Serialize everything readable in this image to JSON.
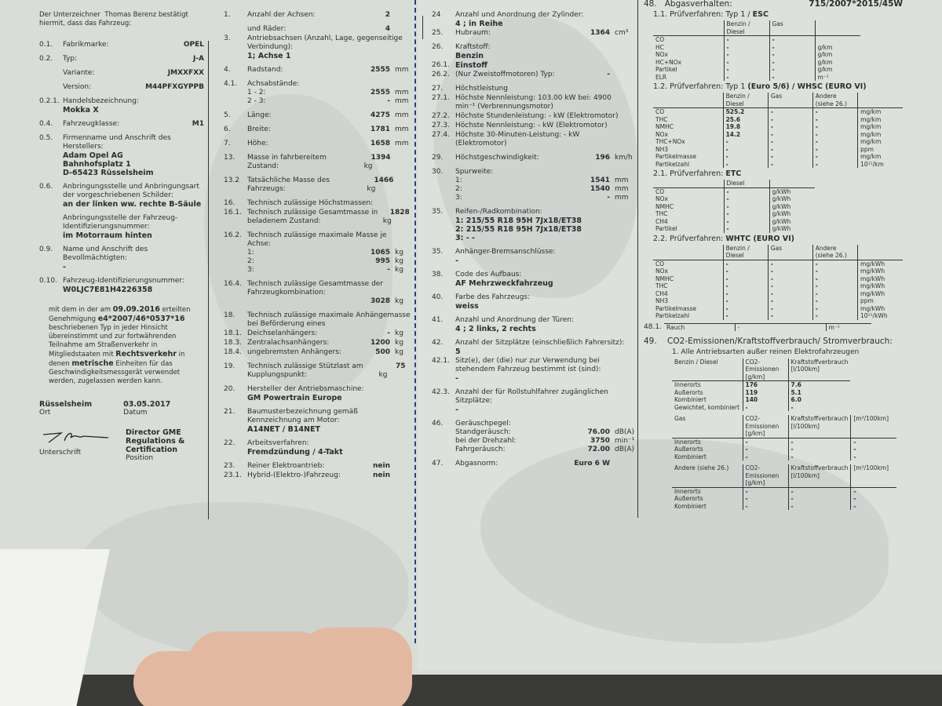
{
  "colors": {
    "paper": "#d9ddd8",
    "map": "#c9cfca",
    "fold_line": "#2a3f7a",
    "text": "#2b2d2c"
  },
  "left": {
    "intro_a": "Der Unterzeichner",
    "signer": "Thomas Berenz",
    "intro_b": "bestätigt",
    "intro_c": "hiermit, dass das Fahrzeug:",
    "items": [
      {
        "num": "0.1.",
        "label": "Fabrikmarke:",
        "value": "OPEL"
      },
      {
        "num": "0.2.",
        "label": "Typ:",
        "value": "J-A"
      },
      {
        "num": "",
        "label": "Variante:",
        "value": "JMXXFXX"
      },
      {
        "num": "",
        "label": "Version:",
        "value": "M44PFXGYPPB"
      },
      {
        "num": "0.2.1.",
        "label": "Handelsbezeichnung:",
        "lines": [
          "Mokka X"
        ]
      },
      {
        "num": "0.4.",
        "label": "Fahrzeugklasse:",
        "value": "M1"
      },
      {
        "num": "0.5.",
        "label": "Firmenname und Anschrift des Herstellers:",
        "lines": [
          "Adam Opel AG",
          "Bahnhofsplatz 1",
          "D-65423 Rüsselsheim"
        ]
      },
      {
        "num": "0.6.",
        "label": "Anbringungsstelle und Anbringungsart der vorgeschriebenen Schilder:",
        "lines": [
          "an der linken ww. rechte B-Säule"
        ]
      },
      {
        "num": "",
        "label": "Anbringungsstelle der Fahrzeug-Identifizierungsnummer:",
        "lines": [
          "im Motorraum hinten"
        ]
      },
      {
        "num": "0.9.",
        "label": "Name und Anschrift des Bevollmächtigten:",
        "lines": [
          "-"
        ]
      },
      {
        "num": "0.10.",
        "label": "Fahrzeug-Identifizierungsnummer:",
        "lines": [
          "W0LJC7E81H4226358"
        ]
      }
    ],
    "para": [
      {
        "t": "mit dem in der am "
      },
      {
        "b": "09.09.2016"
      },
      {
        "t": " erteilten Genehmigung "
      },
      {
        "b": "e4*2007/46*0537*16"
      },
      {
        "t": " beschriebenen Typ in jeder Hinsicht übereinstimmt und zur fortwährenden Teilnahme am Straßenverkehr in Mitgliedstaaten mit "
      },
      {
        "b": "Rechtsverkehr"
      },
      {
        "t": " in denen "
      },
      {
        "b": "metrische"
      },
      {
        "t": " Einheiten für das Geschwindigkeitsmessgerät verwendet werden, zugelassen werden kann."
      }
    ],
    "place": "Rüsselsheim",
    "place_label": "Ort",
    "date": "03.05.2017",
    "date_label": "Datum",
    "position": "Director GME Regulations & Certification",
    "position_label": "Position",
    "signature_label": "Unterschrift",
    "signature": "T. Berenz"
  },
  "middle": [
    {
      "num": "1.",
      "label": "Anzahl der Achsen:",
      "value": "2"
    },
    {
      "num": "",
      "label": "und Räder:",
      "value": "4",
      "tight": true
    },
    {
      "num": "3.",
      "label": "Antriebsachsen (Anzahl, Lage, gegenseitige Verbindung):",
      "lines": [
        "1; Achse 1"
      ]
    },
    {
      "num": "4.",
      "label": "Radstand:",
      "value": "2555",
      "unit": "mm"
    },
    {
      "num": "4.1.",
      "label": "Achsabstände:",
      "sub": [
        {
          "label": "1 - 2:",
          "value": "2555",
          "unit": "mm"
        },
        {
          "label": "2 - 3:",
          "value": "-",
          "unit": "mm"
        }
      ]
    },
    {
      "num": "5.",
      "label": "Länge:",
      "value": "4275",
      "unit": "mm"
    },
    {
      "num": "6.",
      "label": "Breite:",
      "value": "1781",
      "unit": "mm"
    },
    {
      "num": "7.",
      "label": "Höhe:",
      "value": "1658",
      "unit": "mm"
    },
    {
      "num": "13.",
      "label": "Masse in fahrbereitem Zustand:",
      "value": "1394",
      "unit": "kg"
    },
    {
      "num": "13.2",
      "label": "Tatsächliche Masse des Fahrzeugs:",
      "value": "1466",
      "unit": "kg"
    },
    {
      "num": "16.",
      "label": "Technisch zulässige Höchstmassen:",
      "tight": true
    },
    {
      "num": "16.1.",
      "label": "Technisch zulässige Gesamtmasse in beladenem Zustand:",
      "value": "1828",
      "unit": "kg"
    },
    {
      "num": "16.2.",
      "label": "Technisch zulässige maximale Masse je Achse:",
      "sub": [
        {
          "label": "1:",
          "value": "1065",
          "unit": "kg"
        },
        {
          "label": "2:",
          "value": "995",
          "unit": "kg"
        },
        {
          "label": "3:",
          "value": "-",
          "unit": "kg"
        }
      ]
    },
    {
      "num": "16.4.",
      "label": "Technisch zulässige Gesamtmasse der Fahrzeugkombination:",
      "sub": [
        {
          "label": "",
          "value": "3028",
          "unit": "kg"
        }
      ]
    },
    {
      "num": "18.",
      "label": "Technisch zulässige maximale Anhängemasse bei Beförderung eines",
      "tight": true
    },
    {
      "num": "18.1.",
      "label": "Deichselanhängers:",
      "value": "-",
      "unit": "kg",
      "tight": true
    },
    {
      "num": "18.3.",
      "label": "Zentralachsanhängers:",
      "value": "1200",
      "unit": "kg",
      "tight": true
    },
    {
      "num": "18.4.",
      "label": "ungebremsten Anhängers:",
      "value": "500",
      "unit": "kg"
    },
    {
      "num": "19.",
      "label": "Technisch zulässige Stützlast am Kupplungspunkt:",
      "value": "75",
      "unit": "kg"
    },
    {
      "num": "20.",
      "label": "Hersteller der Antriebsmaschine:",
      "lines": [
        "GM Powertrain Europe"
      ]
    },
    {
      "num": "21.",
      "label": "Baumusterbezeichnung gemäß Kennzeichnung am Motor:",
      "lines": [
        "A14NET / B14NET"
      ]
    },
    {
      "num": "22.",
      "label": "Arbeitsverfahren:",
      "lines": [
        "Fremdzündung / 4-Takt"
      ]
    },
    {
      "num": "23.",
      "label": "Reiner Elektroantrieb:",
      "value": "nein",
      "tight": true
    },
    {
      "num": "23.1.",
      "label": "Hybrid-(Elektro-)Fahrzeug:",
      "value": "nein"
    }
  ],
  "right": [
    {
      "num": "24",
      "label": "Anzahl und Anordnung der Zylinder:",
      "lines": [
        "4 ; in Reihe"
      ],
      "tight": true
    },
    {
      "num": "25.",
      "label": "Hubraum:",
      "value": "1364",
      "unit": "cm³"
    },
    {
      "num": "26.",
      "label": "Kraftstoff:",
      "lines": [
        "Benzin"
      ],
      "tight": true
    },
    {
      "num": "26.1.",
      "label": "",
      "lines": [
        "Einstoff"
      ],
      "tight": true
    },
    {
      "num": "26.2.",
      "label": "(Nur Zweistoffmotoren) Typ:",
      "value": "-"
    },
    {
      "num": "27.",
      "label": "Höchstleistung",
      "tight": true
    },
    {
      "num": "27.1.",
      "label": "Höchste Nennleistung: 103.00 kW bei: 4900 min⁻¹ (Verbrennungsmotor)",
      "tight": true
    },
    {
      "num": "27.2.",
      "label": "Höchste Stundenleistung: - kW (Elektromotor)",
      "tight": true
    },
    {
      "num": "27.3.",
      "label": "Höchste Nennleistung: - kW (Elektromotor)",
      "tight": true
    },
    {
      "num": "27.4.",
      "label": "Höchste 30-Minuten-Leistung: - kW (Elektromotor)"
    },
    {
      "num": "29.",
      "label": "Höchstgeschwindigkeit:",
      "value": "196",
      "unit": "km/h"
    },
    {
      "num": "30.",
      "label": "Spurweite:",
      "sub": [
        {
          "label": "1:",
          "value": "1541",
          "unit": "mm"
        },
        {
          "label": "2:",
          "value": "1540",
          "unit": "mm"
        },
        {
          "label": "3:",
          "value": "-",
          "unit": "mm"
        }
      ]
    },
    {
      "num": "35.",
      "label": "Reifen-/Radkombination:",
      "lines": [
        "1: 215/55 R18 95H 7Jx18/ET38",
        "2: 215/55 R18 95H 7Jx18/ET38",
        "3: - -"
      ]
    },
    {
      "num": "35.",
      "label": "Anhänger-Bremsanschlüsse:",
      "lines": [
        "-"
      ]
    },
    {
      "num": "38.",
      "label": "Code des Aufbaus:",
      "lines": [
        "AF  Mehrzweckfahrzeug"
      ]
    },
    {
      "num": "40.",
      "label": "Farbe des Fahrzeugs:",
      "lines": [
        "weiss"
      ]
    },
    {
      "num": "41.",
      "label": "Anzahl und Anordnung der Türen:",
      "lines": [
        "4 ; 2 links, 2 rechts"
      ]
    },
    {
      "num": "42.",
      "label": "Anzahl der Sitzplätze (einschließlich Fahrersitz):",
      "lines": [
        "5"
      ],
      "tight": true
    },
    {
      "num": "42.1.",
      "label": "Sitz(e), der (die) nur zur Verwendung bei stehendem Fahrzeug bestimmt ist (sind):",
      "lines": [
        "-"
      ]
    },
    {
      "num": "42.3.",
      "label": "Anzahl der für Rollstuhlfahrer zugänglichen Sitzplätze:",
      "lines": [
        "-"
      ]
    },
    {
      "num": "46.",
      "label": "Geräuschpegel:",
      "sub": [
        {
          "label": "Standgeräusch:",
          "value": "76.00",
          "unit": "dB(A)"
        },
        {
          "label": "bei der Drehzahl:",
          "value": "3750",
          "unit": "min⁻¹"
        },
        {
          "label": "Fahrgeräusch:",
          "value": "72.00",
          "unit": "dB(A)"
        }
      ]
    },
    {
      "num": "47.",
      "label": "Abgasnorm:",
      "value": "Euro 6 W"
    }
  ],
  "emissions": {
    "num": "48.",
    "title": "Abgasverhalten:",
    "regulation": "715/2007*2015/45W",
    "tables": [
      {
        "title": "1.1. Prüfverfahren: Typ 1 / ",
        "title_bold": "ESC",
        "head": [
          "",
          "Benzin / Diesel",
          "Gas",
          ""
        ],
        "rows": [
          [
            "CO",
            "-",
            "-",
            ""
          ],
          [
            "HC",
            "-",
            "-",
            "g/km"
          ],
          [
            "NOx",
            "-",
            "-",
            "g/km"
          ],
          [
            "HC+NOx",
            "-",
            "-",
            "g/km"
          ],
          [
            "Partikel",
            "-",
            "-",
            "g/km"
          ],
          [
            "ELR",
            "-",
            "-",
            "m⁻¹"
          ]
        ]
      },
      {
        "title": "1.2. Prüfverfahren: Typ 1 ",
        "title_bold": "(Euro 5/6) / WHSC (EURO VI)",
        "head": [
          "",
          "Benzin / Diesel",
          "Gas",
          "Andere (siehe 26.)",
          ""
        ],
        "rows": [
          [
            "CO",
            "525.2",
            "-",
            "-",
            "mg/km"
          ],
          [
            "THC",
            "25.6",
            "-",
            "-",
            "mg/km"
          ],
          [
            "NMHC",
            "19.8",
            "-",
            "-",
            "mg/km"
          ],
          [
            "NOx",
            "14.2",
            "-",
            "-",
            "mg/km"
          ],
          [
            "THC+NOx",
            "-",
            "-",
            "-",
            "mg/km"
          ],
          [
            "NH3",
            "-",
            "-",
            "-",
            "ppm"
          ],
          [
            "Partikelmasse",
            "-",
            "-",
            "-",
            "mg/km"
          ],
          [
            "Partikelzahl",
            "-",
            "-",
            "-",
            "10¹¹/km"
          ]
        ]
      },
      {
        "title": "2.1. Prüfverfahren: ",
        "title_bold": "ETC",
        "head": [
          "",
          "Diesel",
          ""
        ],
        "rows": [
          [
            "CO",
            "-",
            "g/kWh"
          ],
          [
            "NOx",
            "-",
            "g/kWh"
          ],
          [
            "NMHC",
            "-",
            "g/kWh"
          ],
          [
            "THC",
            "-",
            "g/kWh"
          ],
          [
            "CH4",
            "-",
            "g/kWh"
          ],
          [
            "Partikel",
            "-",
            "g/kWh"
          ]
        ]
      },
      {
        "title": "2.2. Prüfverfahren: ",
        "title_bold": "WHTC (EURO VI)",
        "head": [
          "",
          "Benzin / Diesel",
          "Gas",
          "Andere (siehe 26.)",
          ""
        ],
        "rows": [
          [
            "CO",
            "-",
            "-",
            "-",
            "mg/kWh"
          ],
          [
            "NOx",
            "-",
            "-",
            "-",
            "mg/kWh"
          ],
          [
            "NMHC",
            "-",
            "-",
            "-",
            "mg/kWh"
          ],
          [
            "THC",
            "-",
            "-",
            "-",
            "mg/kWh"
          ],
          [
            "CH4",
            "-",
            "-",
            "-",
            "mg/kWh"
          ],
          [
            "NH3",
            "-",
            "-",
            "-",
            "ppm"
          ],
          [
            "Partikelmasse",
            "-",
            "-",
            "-",
            "mg/kWh"
          ],
          [
            "Partikelzahl",
            "-",
            "-",
            "-",
            "10¹¹/kWh"
          ]
        ]
      }
    ],
    "smoke": {
      "num": "48.1.",
      "rows": [
        [
          "",
          "",
          " "
        ],
        [
          "Rauch",
          "-",
          "m⁻¹"
        ]
      ]
    }
  },
  "co2": {
    "num": "49.",
    "title": "CO2-Emissionen/Kraftstoffverbrauch/ Stromverbrauch:",
    "subtitle": "1. Alle Antriebsarten außer reinen Elektrofahrzeugen",
    "tables": [
      {
        "head": [
          "Benzin / Diesel",
          "CO2-Emissionen [g/km]",
          "Kraftstoffverbrauch [l/100km]"
        ],
        "rows": [
          [
            "Innerorts",
            "176",
            "7.6"
          ],
          [
            "Außerorts",
            "119",
            "5.1"
          ],
          [
            "Kombiniert",
            "140",
            "6.0"
          ],
          [
            "Gewichtet, kombiniert",
            "-",
            "-"
          ]
        ]
      },
      {
        "head": [
          "Gas",
          "CO2-Emissionen [g/km]",
          "Kraftstoffverbrauch [l/100km]",
          "[m³/100km]"
        ],
        "rows": [
          [
            "Innerorts",
            "-",
            "-",
            "-"
          ],
          [
            "Außerorts",
            "-",
            "-",
            "-"
          ],
          [
            "Kombiniert",
            "-",
            "-",
            "-"
          ]
        ]
      },
      {
        "head": [
          "Andere (siehe 26.)",
          "CO2-Emissionen [g/km]",
          "Kraftstoffverbrauch [l/100km]",
          "[m³/100km]"
        ],
        "rows": [
          [
            "Innerorts",
            "-",
            "-",
            "-"
          ],
          [
            "Außerorts",
            "-",
            "-",
            "-"
          ],
          [
            "Kombiniert",
            "-",
            "-",
            "-"
          ]
        ]
      }
    ]
  }
}
